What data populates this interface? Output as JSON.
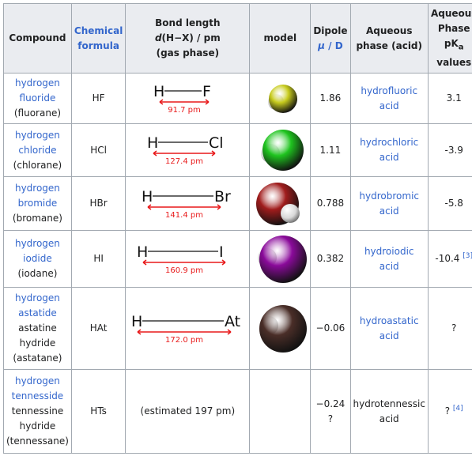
{
  "headers": {
    "compound": "Compound",
    "formula_a": "Chemical",
    "formula_b": "formula",
    "bond_a": "Bond length",
    "bond_b_pre": "d",
    "bond_b_post": "(H−X) / pm",
    "bond_c": "(gas phase)",
    "model": "model",
    "dipole_a": "Dipole",
    "dipole_mu": "μ",
    "dipole_unit": " / D",
    "aq_a": "Aqueous",
    "aq_b": "phase (acid)",
    "pka_a": "Aqueous",
    "pka_b": "Phase",
    "pka_c_pre": "pK",
    "pka_c_sub": "a",
    "pka_d": "values"
  },
  "rows": [
    {
      "name_lines": [
        "hydrogen",
        "fluoride"
      ],
      "extra_lines": [],
      "alt": "(fluorane)",
      "formula": "HF",
      "bond": {
        "h": "H",
        "x": "F",
        "len": "91.7 pm"
      },
      "dipole": "1.86",
      "acid": [
        "hydrofluoric",
        "acid"
      ],
      "pka": "3.1",
      "pka_ref": ""
    },
    {
      "name_lines": [
        "hydrogen",
        "chloride"
      ],
      "extra_lines": [],
      "alt": "(chlorane)",
      "formula": "HCl",
      "bond": {
        "h": "H",
        "x": "Cl",
        "len": "127.4 pm"
      },
      "dipole": "1.11",
      "acid": [
        "hydrochloric",
        "acid"
      ],
      "pka": "-3.9",
      "pka_ref": ""
    },
    {
      "name_lines": [
        "hydrogen",
        "bromide"
      ],
      "extra_lines": [],
      "alt": "(bromane)",
      "formula": "HBr",
      "bond": {
        "h": "H",
        "x": "Br",
        "len": "141.4 pm"
      },
      "dipole": "0.788",
      "acid": [
        "hydrobromic",
        "acid"
      ],
      "pka": "-5.8",
      "pka_ref": ""
    },
    {
      "name_lines": [
        "hydrogen",
        "iodide"
      ],
      "extra_lines": [],
      "alt": "(iodane)",
      "formula": "HI",
      "bond": {
        "h": "H",
        "x": "I",
        "len": "160.9 pm"
      },
      "dipole": "0.382",
      "acid": [
        "hydroiodic",
        "acid"
      ],
      "pka": "-10.4 ",
      "pka_ref": "[3]"
    },
    {
      "name_lines": [
        "hydrogen",
        "astatide"
      ],
      "extra_lines": [
        "astatine",
        "hydride"
      ],
      "alt": "(astatane)",
      "formula": "HAt",
      "bond": {
        "h": "H",
        "x": "At",
        "len": "172.0 pm"
      },
      "dipole": "−0.06",
      "acid": [
        "hydroastatic",
        "acid"
      ],
      "pka": "?",
      "pka_ref": ""
    },
    {
      "name_lines": [
        "hydrogen",
        "tennesside"
      ],
      "extra_lines": [
        "tennessine",
        "hydride"
      ],
      "alt": "(tennessane)",
      "formula": "HTs",
      "bond_text": "(estimated 197 pm)",
      "dipole": "−0.24 ?",
      "acid": [
        "hydrotennessic",
        "acid"
      ],
      "pka": "? ",
      "pka_ref": "[4]"
    }
  ],
  "colors": {
    "link": "#3366cc",
    "header_bg": "#eaecf0",
    "border": "#a2a9b1",
    "bond_arrow": "#e8191a"
  }
}
